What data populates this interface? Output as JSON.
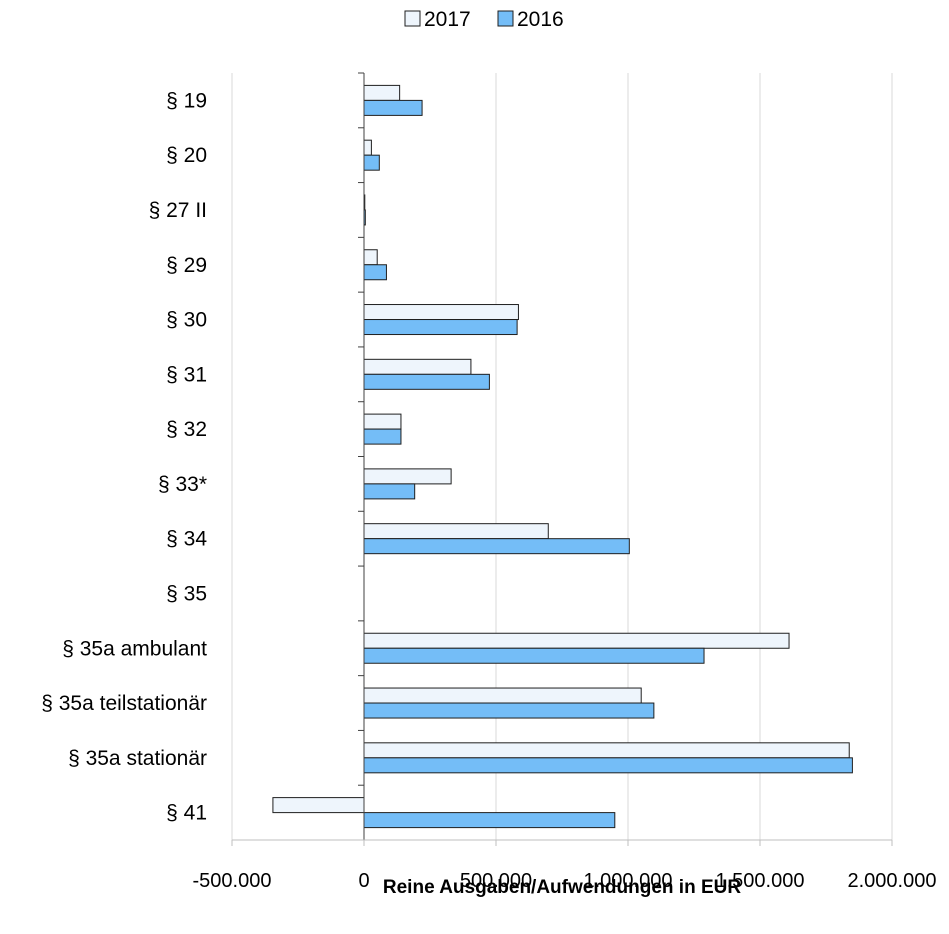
{
  "chart_data": {
    "type": "bar",
    "orientation": "horizontal",
    "categories": [
      "§ 19",
      "§ 20",
      "§ 27 II",
      "§ 29",
      "§ 30",
      "§ 31",
      "§ 32",
      "§ 33*",
      "§ 34",
      "§ 35",
      "§ 35a ambulant",
      "§ 35a teilstationär",
      "§ 35a stationär",
      "§ 41"
    ],
    "series": [
      {
        "name": "2017",
        "color": "#eef5fc",
        "values": [
          135000,
          28000,
          3000,
          50000,
          585000,
          405000,
          140000,
          330000,
          698000,
          0,
          1610000,
          1050000,
          1838000,
          -345000
        ]
      },
      {
        "name": "2016",
        "color": "#74bdf7",
        "values": [
          220000,
          58000,
          5000,
          85000,
          580000,
          475000,
          140000,
          192000,
          1005000,
          0,
          1288000,
          1098000,
          1850000,
          950000
        ]
      }
    ],
    "xlabel": "Reine Ausgaben/Aufwendungen in EUR",
    "xlim": [
      -500000,
      2000000
    ],
    "xticks": [
      -500000,
      0,
      500000,
      1000000,
      1500000,
      2000000
    ],
    "xtick_labels": [
      "-500.000",
      "0",
      "500.000",
      "1.000.000",
      "1.500.000",
      "2.000.000"
    ],
    "grid": "vertical",
    "legend_position": "top-center"
  }
}
